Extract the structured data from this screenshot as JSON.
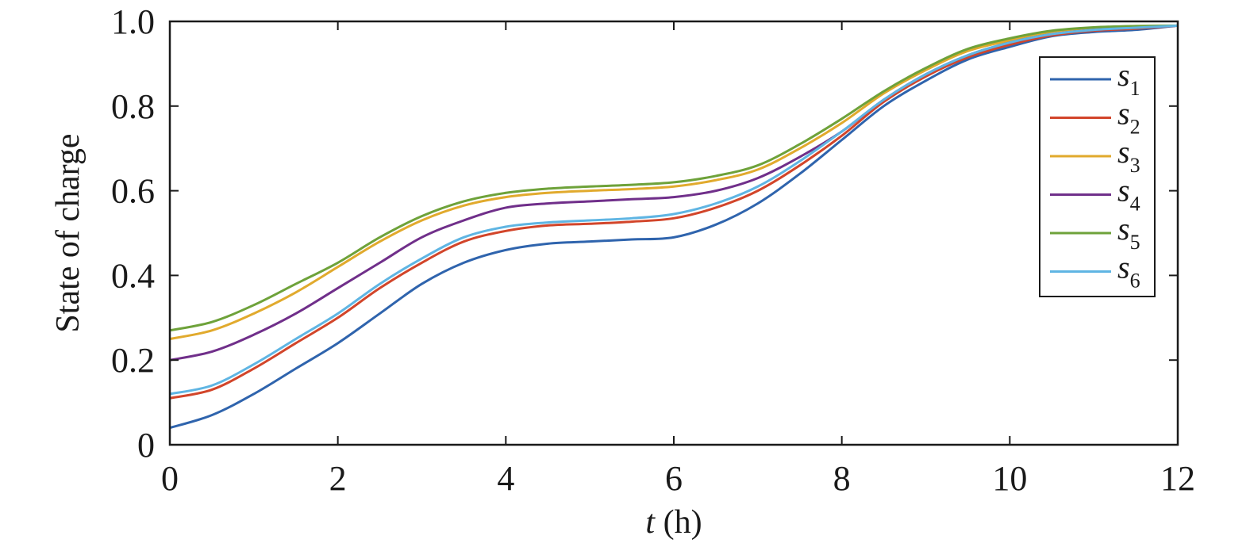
{
  "chart_data": {
    "type": "line",
    "xlabel_var": "t",
    "xlabel_unit": " (h)",
    "ylabel": "State of charge",
    "xlim": [
      0,
      12
    ],
    "ylim": [
      0,
      1.0
    ],
    "x_ticks": [
      0,
      2,
      4,
      6,
      8,
      10,
      12
    ],
    "x_tick_labels": [
      "0",
      "2",
      "4",
      "6",
      "8",
      "10",
      "12"
    ],
    "y_ticks": [
      0,
      0.2,
      0.4,
      0.6,
      0.8,
      1.0
    ],
    "y_tick_labels": [
      "0",
      "0.2",
      "0.4",
      "0.6",
      "0.8",
      "1.0"
    ],
    "grid": false,
    "legend_position": "top-right",
    "x": [
      0,
      0.5,
      1,
      1.5,
      2,
      2.5,
      3,
      3.5,
      4,
      4.5,
      5,
      5.5,
      6,
      6.5,
      7,
      7.5,
      8,
      8.5,
      9,
      9.5,
      10,
      10.5,
      11,
      11.5,
      12
    ],
    "series": [
      {
        "name": "s",
        "subscript": "1",
        "color": "#2f64ad",
        "values": [
          0.04,
          0.07,
          0.12,
          0.18,
          0.24,
          0.31,
          0.38,
          0.43,
          0.46,
          0.475,
          0.48,
          0.485,
          0.49,
          0.52,
          0.57,
          0.64,
          0.72,
          0.8,
          0.86,
          0.91,
          0.94,
          0.965,
          0.975,
          0.98,
          0.99
        ]
      },
      {
        "name": "s",
        "subscript": "2",
        "color": "#d2452a",
        "values": [
          0.11,
          0.13,
          0.18,
          0.24,
          0.3,
          0.37,
          0.43,
          0.48,
          0.505,
          0.518,
          0.522,
          0.527,
          0.535,
          0.56,
          0.6,
          0.66,
          0.73,
          0.81,
          0.87,
          0.915,
          0.945,
          0.967,
          0.978,
          0.983,
          0.99
        ]
      },
      {
        "name": "s",
        "subscript": "3",
        "color": "#e1aa2d",
        "values": [
          0.25,
          0.27,
          0.31,
          0.36,
          0.42,
          0.48,
          0.53,
          0.565,
          0.585,
          0.595,
          0.6,
          0.604,
          0.61,
          0.625,
          0.65,
          0.7,
          0.76,
          0.83,
          0.885,
          0.93,
          0.955,
          0.975,
          0.983,
          0.987,
          0.99
        ]
      },
      {
        "name": "s",
        "subscript": "4",
        "color": "#702f8a",
        "values": [
          0.2,
          0.22,
          0.26,
          0.31,
          0.37,
          0.43,
          0.49,
          0.53,
          0.56,
          0.57,
          0.575,
          0.58,
          0.585,
          0.6,
          0.63,
          0.68,
          0.74,
          0.815,
          0.875,
          0.92,
          0.95,
          0.97,
          0.98,
          0.985,
          0.99
        ]
      },
      {
        "name": "s",
        "subscript": "5",
        "color": "#6ea23a",
        "values": [
          0.27,
          0.29,
          0.33,
          0.38,
          0.43,
          0.49,
          0.54,
          0.575,
          0.595,
          0.605,
          0.61,
          0.614,
          0.62,
          0.635,
          0.66,
          0.71,
          0.77,
          0.835,
          0.89,
          0.935,
          0.96,
          0.978,
          0.986,
          0.989,
          0.99
        ]
      },
      {
        "name": "s",
        "subscript": "6",
        "color": "#5fb5e3",
        "values": [
          0.12,
          0.14,
          0.19,
          0.25,
          0.31,
          0.38,
          0.44,
          0.49,
          0.515,
          0.525,
          0.53,
          0.535,
          0.545,
          0.57,
          0.61,
          0.67,
          0.74,
          0.815,
          0.875,
          0.92,
          0.95,
          0.97,
          0.98,
          0.985,
          0.99
        ]
      }
    ]
  }
}
